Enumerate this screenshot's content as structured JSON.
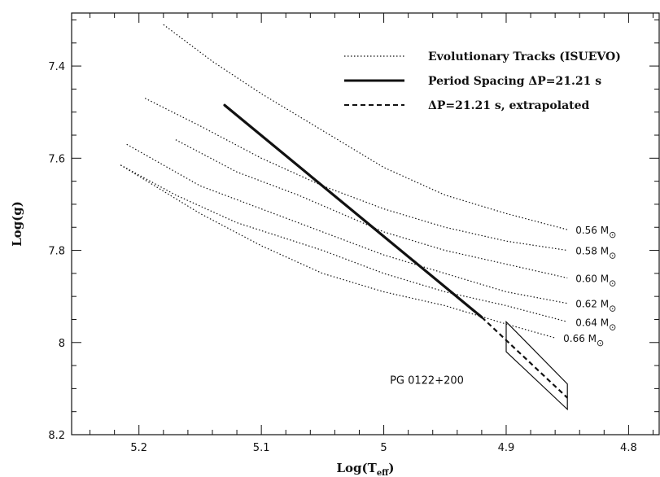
{
  "chart_data": {
    "type": "line",
    "xlabel_main": "Log(T",
    "xlabel_sub": "eff",
    "xlabel_close": ")",
    "ylabel": "Log(g)",
    "xlim": [
      5.255,
      4.775
    ],
    "ylim": [
      8.2,
      7.285
    ],
    "x_ticks": [
      {
        "value": 5.2,
        "label": "5.2"
      },
      {
        "value": 5.1,
        "label": "5.1"
      },
      {
        "value": 5.0,
        "label": "5"
      },
      {
        "value": 4.9,
        "label": "4.9"
      },
      {
        "value": 4.8,
        "label": "4.8"
      }
    ],
    "y_ticks": [
      {
        "value": 7.4,
        "label": "7.4"
      },
      {
        "value": 7.6,
        "label": "7.6"
      },
      {
        "value": 7.8,
        "label": "7.8"
      },
      {
        "value": 8.0,
        "label": "8"
      },
      {
        "value": 8.2,
        "label": "8.2"
      }
    ],
    "legend": [
      {
        "label": "Evolutionary Tracks (ISUEVO)",
        "style": "dotted"
      },
      {
        "label": "Period Spacing ΔP=21.21 s",
        "style": "solid"
      },
      {
        "label": "ΔP=21.21 s, extrapolated",
        "style": "dashed"
      }
    ],
    "tracks": [
      {
        "mass": "0.56",
        "unit": "M",
        "x": [
          5.18,
          5.14,
          5.1,
          5.05,
          5.0,
          4.95,
          4.9,
          4.85
        ],
        "y": [
          7.31,
          7.39,
          7.46,
          7.54,
          7.62,
          7.68,
          7.72,
          7.755
        ]
      },
      {
        "mass": "0.58",
        "unit": "M",
        "x": [
          5.195,
          5.15,
          5.1,
          5.05,
          5.0,
          4.95,
          4.9,
          4.85
        ],
        "y": [
          7.47,
          7.53,
          7.6,
          7.66,
          7.71,
          7.75,
          7.78,
          7.8
        ]
      },
      {
        "mass": "0.60",
        "unit": "M",
        "x": [
          5.17,
          5.12,
          5.07,
          5.0,
          4.95,
          4.9,
          4.85
        ],
        "y": [
          7.56,
          7.63,
          7.68,
          7.76,
          7.8,
          7.83,
          7.86
        ]
      },
      {
        "mass": "0.62",
        "unit": "M",
        "x": [
          5.21,
          5.15,
          5.1,
          5.05,
          5.0,
          4.95,
          4.9,
          4.85
        ],
        "y": [
          7.57,
          7.66,
          7.71,
          7.76,
          7.81,
          7.85,
          7.89,
          7.915
        ]
      },
      {
        "mass": "0.64",
        "unit": "M",
        "x": [
          5.215,
          5.17,
          5.12,
          5.05,
          5.0,
          4.95,
          4.9,
          4.85
        ],
        "y": [
          7.615,
          7.68,
          7.74,
          7.8,
          7.85,
          7.89,
          7.92,
          7.955
        ]
      },
      {
        "mass": "0.66",
        "unit": "M",
        "x": [
          5.215,
          5.15,
          5.1,
          5.05,
          5.0,
          4.95,
          4.9,
          4.86
        ],
        "y": [
          7.615,
          7.72,
          7.79,
          7.85,
          7.89,
          7.92,
          7.96,
          7.99
        ]
      }
    ],
    "period_spacing_line": {
      "x": [
        5.13,
        4.92
      ],
      "y": [
        7.485,
        7.945
      ]
    },
    "extrapolated_line": {
      "x": [
        4.92,
        4.85
      ],
      "y": [
        7.945,
        8.12
      ]
    },
    "uncertainty_box": {
      "x": [
        4.9,
        4.9,
        4.85,
        4.85
      ],
      "y": [
        7.955,
        8.02,
        8.145,
        8.09
      ]
    },
    "annotation": "PG 0122+200",
    "annotation_pos": {
      "x": 4.995,
      "y": 8.09
    },
    "sun_symbol": "⊙"
  }
}
